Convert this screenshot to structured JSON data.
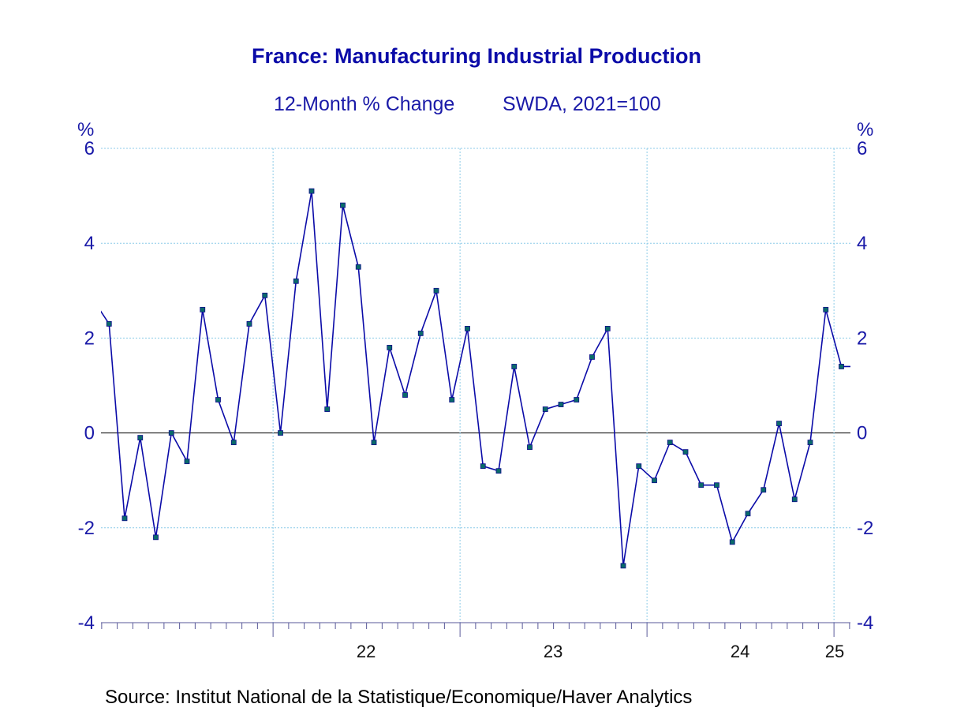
{
  "chart_data": {
    "type": "line",
    "title": "France: Manufacturing Industrial Production",
    "subtitle_left": "12-Month % Change",
    "subtitle_right": "SWDA, 2021=100",
    "y_unit_left": "%",
    "y_unit_right": "%",
    "ylim": [
      -4,
      6
    ],
    "y_ticks": [
      -4,
      -2,
      0,
      2,
      4,
      6
    ],
    "y_tick_labels": [
      "-4",
      "-2",
      "0",
      "2",
      "4",
      "6"
    ],
    "x_tick_labels": [
      "22",
      "23",
      "24",
      "25"
    ],
    "x_tick_years": [
      2022,
      2023,
      2024,
      2025
    ],
    "grid": true,
    "source": "Source:  Institut National de la Statistique/Economique/Haver Analytics",
    "colors": {
      "line": "#0b0ba8",
      "marker": "#0a6a6a",
      "grid": "#8ccbe8",
      "text": "#1a1aa8",
      "zero_line": "#000000"
    },
    "series": [
      {
        "dates": [
          "2021-01",
          "2021-02",
          "2021-03",
          "2021-04",
          "2021-05",
          "2021-06",
          "2021-07",
          "2021-08",
          "2021-09",
          "2021-10",
          "2021-11",
          "2021-12",
          "2022-01",
          "2022-02",
          "2022-03",
          "2022-04",
          "2022-05",
          "2022-06",
          "2022-07",
          "2022-08",
          "2022-09",
          "2022-10",
          "2022-11",
          "2022-12",
          "2023-01",
          "2023-02",
          "2023-03",
          "2023-04",
          "2023-05",
          "2023-06",
          "2023-07",
          "2023-08",
          "2023-09",
          "2023-10",
          "2023-11",
          "2023-12",
          "2024-01",
          "2024-02",
          "2024-03",
          "2024-04",
          "2024-05",
          "2024-06",
          "2024-07",
          "2024-08",
          "2024-09",
          "2024-10",
          "2024-11",
          "2024-12",
          "2025-01",
          "2025-02"
        ],
        "values": [
          2.8,
          2.3,
          -1.8,
          -0.1,
          -2.2,
          0.0,
          -0.6,
          2.6,
          0.7,
          -0.2,
          2.3,
          2.9,
          0.0,
          3.2,
          5.1,
          0.5,
          4.8,
          3.5,
          -0.2,
          1.8,
          0.8,
          2.1,
          3.0,
          0.7,
          2.2,
          -0.7,
          -0.8,
          1.4,
          -0.3,
          0.5,
          0.6,
          0.7,
          1.6,
          2.2,
          -2.8,
          -0.7,
          -1.0,
          -0.2,
          -0.4,
          -1.1,
          -1.1,
          -2.3,
          -1.7,
          -1.2,
          0.2,
          -1.4,
          -0.2,
          2.6,
          1.4,
          1.4
        ]
      }
    ]
  }
}
